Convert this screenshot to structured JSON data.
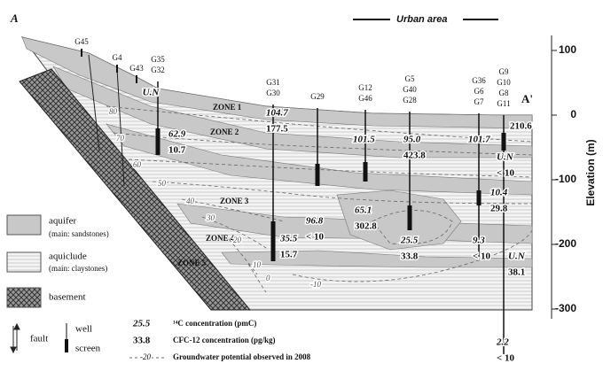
{
  "section": {
    "start_label": "A",
    "end_label": "A'",
    "urban_area": "Urban area",
    "axis_title": "Elevation (m)",
    "axis_ticks": [
      100,
      0,
      -100,
      -200,
      -300
    ]
  },
  "zones": [
    "ZONE 1",
    "ZONE 2",
    "ZONE 3",
    "ZONE 4",
    "ZONE 5"
  ],
  "contours": [
    "80",
    "70",
    "60",
    "50",
    "40",
    "30",
    "20",
    "10",
    "0",
    "-10"
  ],
  "shallow_wells": [
    "G45",
    "G4",
    "G43"
  ],
  "wells": [
    {
      "ids": [
        "G35",
        "G32"
      ],
      "readings": [
        {
          "c14": "U.N"
        },
        {
          "c14": "62.9",
          "cfc": "10.7"
        }
      ]
    },
    {
      "ids": [
        "G31",
        "G30"
      ],
      "readings": [
        {
          "c14": "104.7",
          "cfc": "177.5"
        },
        {
          "c14": "35.5",
          "cfc": "15.7"
        }
      ]
    },
    {
      "ids": [
        "G29"
      ],
      "readings": [
        {
          "c14": "96.8",
          "cfc": "< 10"
        }
      ]
    },
    {
      "ids": [
        "G12",
        "G46"
      ],
      "readings": [
        {
          "c14": "101.5"
        },
        {
          "c14": "65.1",
          "cfc": "302.8"
        }
      ]
    },
    {
      "ids": [
        "G5",
        "G40",
        "G28"
      ],
      "readings": [
        {
          "c14": "95.0",
          "cfc": "423.8"
        },
        {
          "c14": "25.5",
          "cfc": "33.8"
        }
      ]
    },
    {
      "ids": [
        "G36",
        "G6",
        "G7"
      ],
      "readings": [
        {
          "c14": "101.7"
        },
        {
          "c14": "9.3",
          "cfc": "< 10"
        }
      ]
    },
    {
      "ids": [
        "G9",
        "G10",
        "G8",
        "G11"
      ],
      "readings": [
        {
          "cfc": "210.6"
        },
        {
          "c14": "U.N",
          "cfc": "< 10"
        },
        {
          "c14": "10.4",
          "cfc": "29.8"
        },
        {
          "c14": "U.N",
          "cfc": "38.1"
        },
        {
          "c14": "2.2",
          "cfc": "< 10"
        }
      ]
    }
  ],
  "legend": {
    "aquifer": "aquifer",
    "aquifer_note": "(main: sandstones)",
    "aquiclude": "aquiclude",
    "aquiclude_note": "(main: claystones)",
    "basement": "basement",
    "fault": "fault",
    "well": "well",
    "screen": "screen",
    "c14_example": "25.5",
    "c14_text": "¹⁴C concentration (pmC)",
    "cfc_example": "33.8",
    "cfc_text": "CFC-12 concentration (pg/kg)",
    "contour_example": "-20",
    "contour_text": "Groundwater potential observed in 2008"
  }
}
